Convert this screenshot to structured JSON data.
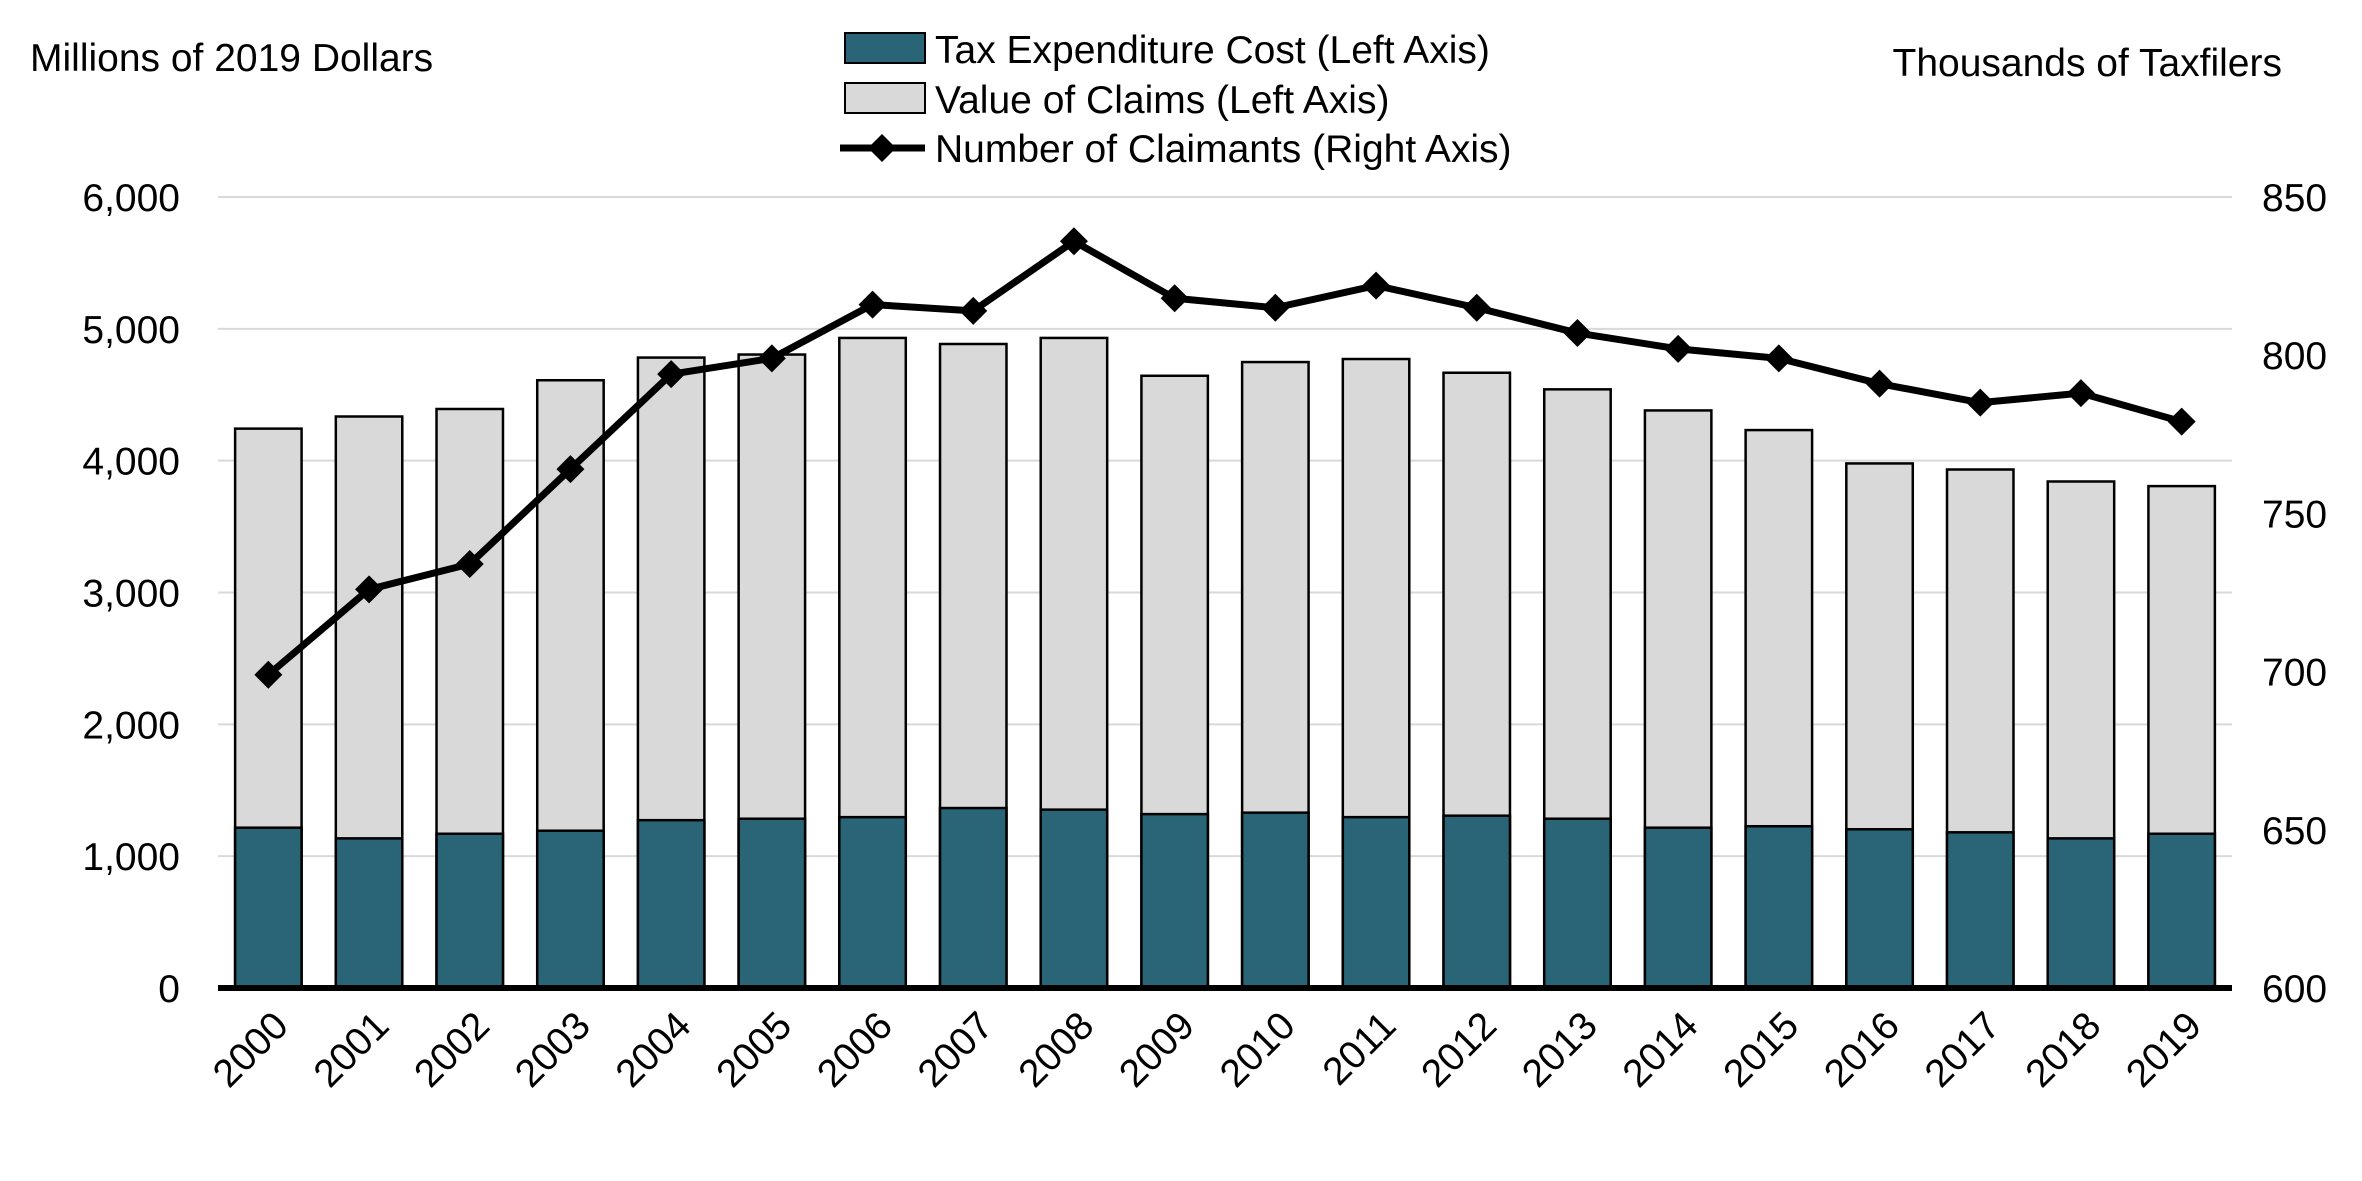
{
  "chart_data": {
    "type": "bar",
    "title": "",
    "left_axis_label": "Millions of 2019 Dollars",
    "right_axis_label": "Thousands of Taxfilers",
    "categories": [
      "2000",
      "2001",
      "2002",
      "2003",
      "2004",
      "2005",
      "2006",
      "2007",
      "2008",
      "2009",
      "2010",
      "2011",
      "2012",
      "2013",
      "2014",
      "2015",
      "2016",
      "2017",
      "2018",
      "2019"
    ],
    "left_ylim": [
      0,
      6000
    ],
    "left_ticks": [
      0,
      1000,
      2000,
      3000,
      4000,
      5000,
      6000
    ],
    "left_tick_labels": [
      "0",
      "1,000",
      "2,000",
      "3,000",
      "4,000",
      "5,000",
      "6,000"
    ],
    "right_ylim": [
      600,
      850
    ],
    "right_ticks": [
      600,
      650,
      700,
      750,
      800,
      850
    ],
    "right_tick_labels": [
      "600",
      "650",
      "700",
      "750",
      "800",
      "850"
    ],
    "grid": true,
    "legend_position": "top-center",
    "series": [
      {
        "name": "Tax Expenditure Cost (Left Axis)",
        "type": "bar",
        "axis": "left",
        "color": "#2a6577",
        "values": [
          1216,
          1135,
          1170,
          1193,
          1273,
          1284,
          1296,
          1365,
          1353,
          1319,
          1330,
          1296,
          1307,
          1284,
          1216,
          1227,
          1204,
          1181,
          1135,
          1170
        ]
      },
      {
        "name": "Value of Claims (Left Axis)",
        "type": "bar",
        "axis": "left",
        "color": "#d9d9d9",
        "values": [
          4243,
          4335,
          4392,
          4610,
          4782,
          4805,
          4931,
          4885,
          4931,
          4644,
          4748,
          4771,
          4667,
          4541,
          4381,
          4232,
          3979,
          3933,
          3842,
          3807
        ]
      },
      {
        "name": "Number of Claimants (Right Axis)",
        "type": "line",
        "axis": "right",
        "color": "#000000",
        "marker": "diamond",
        "values": [
          699,
          726,
          734,
          764,
          794,
          799,
          816,
          814,
          836,
          818,
          815,
          822,
          815,
          807,
          802,
          799,
          791,
          785,
          788,
          779
        ]
      }
    ]
  }
}
